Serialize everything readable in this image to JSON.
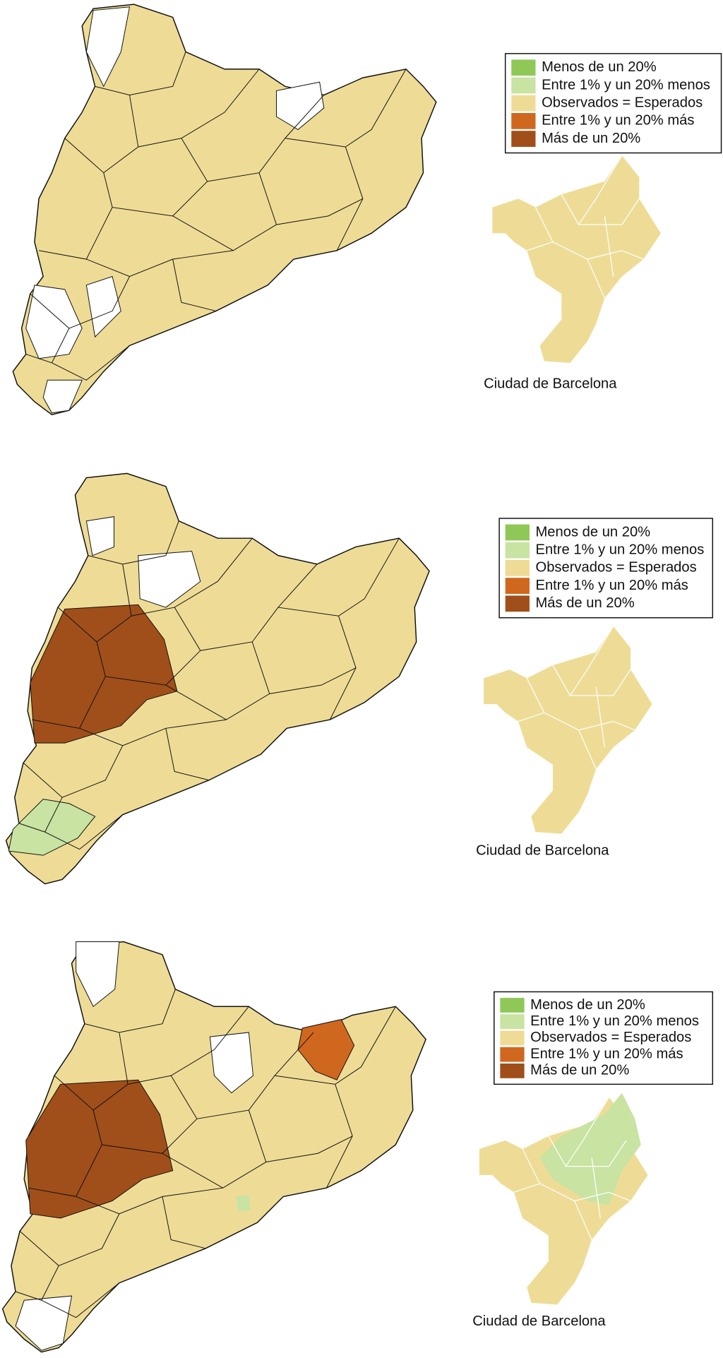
{
  "panels": [
    {
      "legend": [
        {
          "label": "Menos de un 20%",
          "color": "#8fc857"
        },
        {
          "label": "Entre 1% y un 20% menos",
          "color": "#c8e3a2"
        },
        {
          "label": "Observados = Esperados",
          "color": "#eedc96"
        },
        {
          "label": "Entre 1% y un 20% más",
          "color": "#d0671f"
        },
        {
          "label": "Más de un 20%",
          "color": "#a04f1a"
        }
      ],
      "city_label": "Ciudad de Barcelona"
    },
    {
      "legend": [
        {
          "label": "Menos de un 20%",
          "color": "#8fc857"
        },
        {
          "label": "Entre 1% y un 20% menos",
          "color": "#c8e3a2"
        },
        {
          "label": "Observados = Esperados",
          "color": "#eedc96"
        },
        {
          "label": "Entre 1% y un 20% más",
          "color": "#d0671f"
        },
        {
          "label": "Más de un 20%",
          "color": "#a04f1a"
        }
      ],
      "city_label": "Ciudad de Barcelona"
    },
    {
      "legend": [
        {
          "label": "Menos de un 20%",
          "color": "#8fc857"
        },
        {
          "label": "Entre 1% y un 20% menos",
          "color": "#c8e3a2"
        },
        {
          "label": "Observados = Esperados",
          "color": "#eedc96"
        },
        {
          "label": "Entre 1% y un 20% más",
          "color": "#d0671f"
        },
        {
          "label": "Más de un 20%",
          "color": "#a04f1a"
        }
      ],
      "city_label": "Ciudad de Barcelona"
    }
  ]
}
